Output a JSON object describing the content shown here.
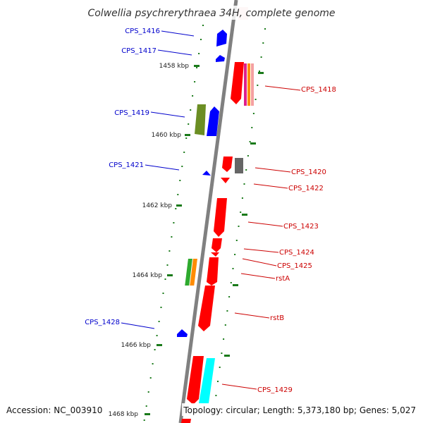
{
  "title": "Colwellia psychrerythraea 34H, complete genome",
  "footer": {
    "accession": "Accession: NC_003910",
    "topology": "Topology: circular; Length: 5,373,180 bp; Genes: 5,027"
  },
  "colors": {
    "forward_gene": "#ff0000",
    "reverse_gene": "#0000ff",
    "backbone": "#808080",
    "tick": "#1a7a1a",
    "olive": "#6b8e23",
    "gray_gene": "#666666",
    "cyan_gene": "#00ffff"
  },
  "kbp_labels": [
    "1458 kbp",
    "1460 kbp",
    "1462 kbp",
    "1464 kbp",
    "1466 kbp",
    "1468 kbp"
  ],
  "genes": [
    {
      "label": "CPS_1416",
      "strand": "reverse"
    },
    {
      "label": "CPS_1417",
      "strand": "reverse"
    },
    {
      "label": "CPS_1418",
      "strand": "forward"
    },
    {
      "label": "CPS_1419",
      "strand": "reverse"
    },
    {
      "label": "CPS_1420",
      "strand": "forward"
    },
    {
      "label": "CPS_1421",
      "strand": "reverse"
    },
    {
      "label": "CPS_1422",
      "strand": "forward"
    },
    {
      "label": "CPS_1423",
      "strand": "forward"
    },
    {
      "label": "CPS_1424",
      "strand": "forward"
    },
    {
      "label": "CPS_1425",
      "strand": "forward"
    },
    {
      "label": "rstA",
      "strand": "forward"
    },
    {
      "label": "rstB",
      "strand": "forward"
    },
    {
      "label": "CPS_1428",
      "strand": "reverse"
    },
    {
      "label": "CPS_1429",
      "strand": "forward"
    }
  ]
}
